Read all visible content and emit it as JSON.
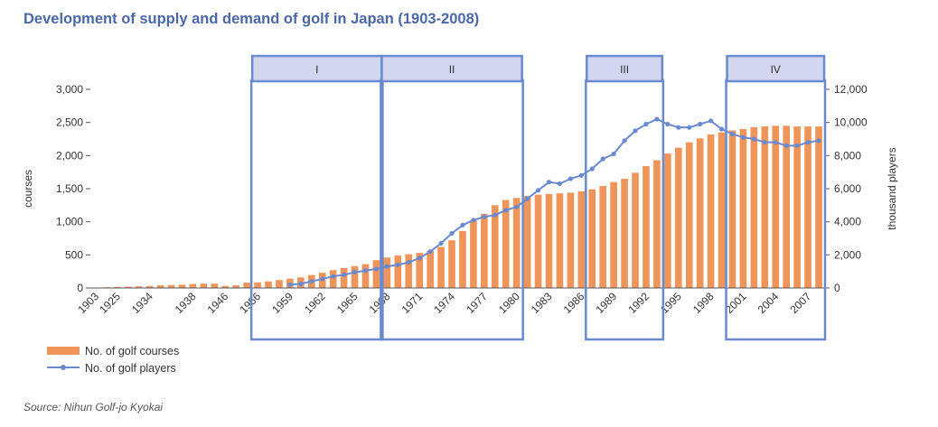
{
  "title": "Development of supply and demand of golf in Japan (1903-2008)",
  "source": "Source: Nihun Golf-jo Kyokai",
  "chart_data": {
    "type": "bar+line",
    "title": "Development of supply and demand of golf in Japan (1903-2008)",
    "ylabel_left": "courses",
    "ylabel_right": "thousand players",
    "ylim_left": [
      0,
      3000
    ],
    "ylim_right": [
      0,
      12000
    ],
    "yticks_left": [
      "3,000",
      "2,500",
      "2,000",
      "1,500",
      "1,000",
      "500",
      "0"
    ],
    "yticks_right": [
      "12,000",
      "10,000",
      "8,000",
      "6,000",
      "4,000",
      "2,000",
      "0"
    ],
    "xtick_labels": [
      "1903",
      "1925",
      "1934",
      "1938",
      "1946",
      "1956",
      "1959",
      "1962",
      "1965",
      "1968",
      "1971",
      "1974",
      "1977",
      "1980",
      "1983",
      "1986",
      "1989",
      "1992",
      "1995",
      "1998",
      "2001",
      "2004",
      "2007"
    ],
    "years": [
      1903,
      1922,
      1925,
      1928,
      1931,
      1934,
      1935,
      1936,
      1937,
      1938,
      1939,
      1940,
      1946,
      1950,
      1955,
      1956,
      1957,
      1958,
      1959,
      1960,
      1961,
      1962,
      1963,
      1964,
      1965,
      1966,
      1967,
      1968,
      1969,
      1970,
      1971,
      1972,
      1973,
      1974,
      1975,
      1976,
      1977,
      1978,
      1979,
      1980,
      1981,
      1982,
      1983,
      1984,
      1985,
      1986,
      1987,
      1988,
      1989,
      1990,
      1991,
      1992,
      1993,
      1994,
      1995,
      1996,
      1997,
      1998,
      1999,
      2000,
      2001,
      2002,
      2003,
      2004,
      2005,
      2006,
      2007,
      2008
    ],
    "series": [
      {
        "name": "No. of golf courses",
        "kind": "bar",
        "axis": "left",
        "color": "#f0955a",
        "values": [
          0,
          10,
          15,
          20,
          25,
          30,
          40,
          45,
          50,
          60,
          65,
          65,
          30,
          40,
          80,
          85,
          100,
          120,
          140,
          160,
          195,
          230,
          270,
          300,
          330,
          360,
          420,
          460,
          490,
          510,
          530,
          560,
          620,
          720,
          860,
          1020,
          1120,
          1250,
          1330,
          1360,
          1390,
          1410,
          1420,
          1430,
          1440,
          1460,
          1490,
          1540,
          1600,
          1650,
          1740,
          1840,
          1930,
          2030,
          2120,
          2200,
          2260,
          2320,
          2350,
          2380,
          2400,
          2430,
          2440,
          2450,
          2450,
          2440,
          2440,
          2440
        ]
      },
      {
        "name": "No. of golf players",
        "kind": "line",
        "axis": "right",
        "color": "#6a8ad0",
        "points": [
          [
            1959,
            200
          ],
          [
            1960,
            250
          ],
          [
            1961,
            400
          ],
          [
            1962,
            550
          ],
          [
            1963,
            700
          ],
          [
            1964,
            800
          ],
          [
            1965,
            950
          ],
          [
            1966,
            1050
          ],
          [
            1967,
            1150
          ],
          [
            1968,
            1300
          ],
          [
            1969,
            1400
          ],
          [
            1970,
            1550
          ],
          [
            1971,
            1800
          ],
          [
            1972,
            2200
          ],
          [
            1973,
            2700
          ],
          [
            1974,
            3300
          ],
          [
            1975,
            3800
          ],
          [
            1976,
            4100
          ],
          [
            1977,
            4300
          ],
          [
            1978,
            4400
          ],
          [
            1979,
            4700
          ],
          [
            1980,
            4900
          ],
          [
            1981,
            5400
          ],
          [
            1982,
            5900
          ],
          [
            1983,
            6400
          ],
          [
            1984,
            6300
          ],
          [
            1985,
            6600
          ],
          [
            1986,
            6800
          ],
          [
            1987,
            7200
          ],
          [
            1988,
            7800
          ],
          [
            1989,
            8100
          ],
          [
            1990,
            8900
          ],
          [
            1991,
            9500
          ],
          [
            1992,
            9900
          ],
          [
            1993,
            10200
          ],
          [
            1994,
            9900
          ],
          [
            1995,
            9700
          ],
          [
            1996,
            9700
          ],
          [
            1997,
            9900
          ],
          [
            1998,
            10100
          ],
          [
            1999,
            9600
          ],
          [
            2000,
            9300
          ],
          [
            2001,
            9100
          ],
          [
            2002,
            9000
          ],
          [
            2003,
            8800
          ],
          [
            2004,
            8800
          ],
          [
            2005,
            8600
          ],
          [
            2006,
            8600
          ],
          [
            2007,
            8800
          ],
          [
            2008,
            8900
          ]
        ]
      }
    ],
    "periods": [
      {
        "label": "I",
        "from": 1956,
        "to": 1967
      },
      {
        "label": "II",
        "from": 1968,
        "to": 1980
      },
      {
        "label": "III",
        "from": 1987,
        "to": 1993
      },
      {
        "label": "IV",
        "from": 2000,
        "to": 2008
      }
    ],
    "legend_position": "bottom-left",
    "grid": false
  },
  "colors": {
    "bar": "#f0955a",
    "line": "#6a8ad0",
    "period_box": "#6a8ad0",
    "period_label_fill": "#d2d6ee",
    "title": "#4a68a8"
  }
}
